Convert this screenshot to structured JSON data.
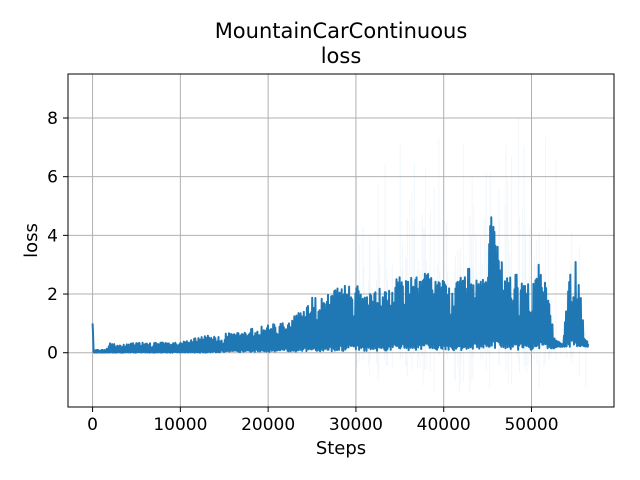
{
  "chart_data": {
    "type": "line",
    "title_lines": [
      "MountainCarContinuous",
      "loss"
    ],
    "xlabel": "Steps",
    "ylabel": "loss",
    "xlim": [
      -2800,
      59400
    ],
    "ylim": [
      -1.85,
      9.5
    ],
    "xticks": [
      0,
      10000,
      20000,
      30000,
      40000,
      50000
    ],
    "xtick_labels": [
      "0",
      "10000",
      "20000",
      "30000",
      "40000",
      "50000"
    ],
    "yticks": [
      0,
      2,
      4,
      6,
      8
    ],
    "ytick_labels": [
      "0",
      "2",
      "4",
      "6",
      "8"
    ],
    "grid": true,
    "line_color": "#1f77b4",
    "band_color": "#1f77b4",
    "band_max": 9.2,
    "band_min": -1.6,
    "series": [
      {
        "values_envelope": {
          "x": [
            0,
            200,
            1500,
            2000,
            3000,
            5000,
            8000,
            10000,
            13000,
            15000,
            17000,
            19000,
            21000,
            23000,
            25000,
            27000,
            28000,
            29000,
            30000,
            31000,
            32000,
            33000,
            34000,
            35000,
            36000,
            37000,
            38000,
            39000,
            40000,
            41000,
            42000,
            43000,
            44000,
            45000,
            45400,
            46000,
            47000,
            48000,
            49000,
            50000,
            51000,
            52000,
            52600,
            53000,
            53600,
            54000,
            54600,
            55000,
            55600,
            56000,
            56500
          ],
          "upper": [
            1.0,
            0.1,
            0.1,
            0.35,
            0.25,
            0.35,
            0.35,
            0.35,
            0.6,
            0.65,
            0.7,
            0.9,
            1.0,
            1.3,
            1.9,
            2.1,
            2.2,
            2.5,
            2.3,
            2.1,
            2.0,
            2.3,
            2.1,
            2.8,
            2.7,
            2.6,
            2.8,
            2.6,
            2.6,
            2.1,
            2.8,
            2.9,
            2.7,
            2.9,
            4.8,
            3.9,
            2.7,
            2.7,
            2.6,
            2.2,
            3.2,
            1.9,
            0.5,
            0.4,
            0.3,
            2.1,
            3.0,
            3.2,
            2.5,
            0.5,
            0.4
          ],
          "lower": [
            0.0,
            0.0,
            0.0,
            0.0,
            0.0,
            0.0,
            0.0,
            0.0,
            0.0,
            0.02,
            0.02,
            0.03,
            0.04,
            0.04,
            0.05,
            0.05,
            0.05,
            0.06,
            0.06,
            0.06,
            0.07,
            0.07,
            0.07,
            0.08,
            0.08,
            0.08,
            0.08,
            0.08,
            0.08,
            0.08,
            0.08,
            0.1,
            0.12,
            0.15,
            0.15,
            0.15,
            0.12,
            0.1,
            0.1,
            0.1,
            0.1,
            0.12,
            0.15,
            0.2,
            0.2,
            0.2,
            0.2,
            0.2,
            0.2,
            0.2,
            0.2
          ]
        }
      }
    ]
  }
}
